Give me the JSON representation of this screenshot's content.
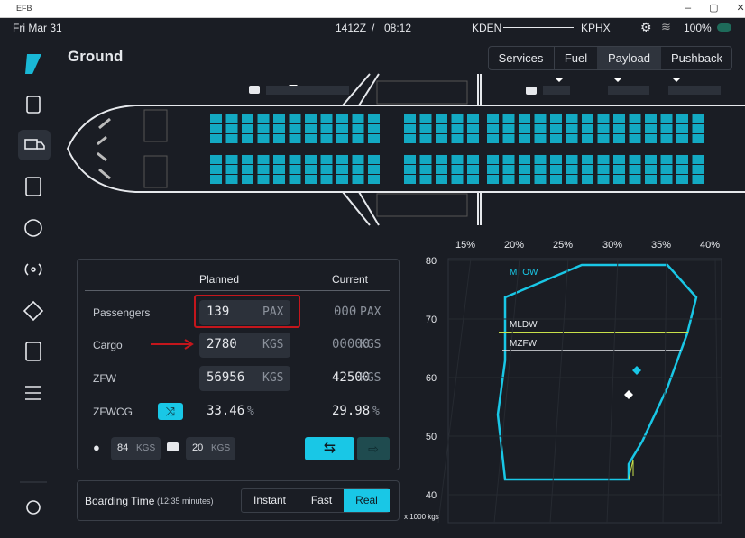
{
  "window": {
    "title": "EFB"
  },
  "status_bar": {
    "date": "Fri Mar 31",
    "time_utc": "1412Z",
    "separator": "/",
    "time_local": "08:12",
    "origin": "KDEN",
    "destination": "KPHX",
    "battery": "100%"
  },
  "header": {
    "title": "Ground",
    "tabs": [
      "Services",
      "Fuel",
      "Payload",
      "Pushback"
    ]
  },
  "payload_table": {
    "headers": [
      "Planned",
      "Current"
    ],
    "rows": [
      {
        "label": "Passengers",
        "planned": "139",
        "planned_unit": "PAX",
        "current": "000",
        "current_unit": "PAX"
      },
      {
        "label": "Cargo",
        "planned": "2780",
        "planned_unit": "KGS",
        "current": "00000",
        "current_unit": "KGS"
      },
      {
        "label": "ZFW",
        "planned": "56956",
        "planned_unit": "KGS",
        "current": "42500",
        "current_unit": "KGS"
      },
      {
        "label": "ZFWCG",
        "planned": "33.46",
        "planned_unit": "%",
        "current": "29.98",
        "current_unit": "%"
      }
    ],
    "pax_weight": "84",
    "pax_weight_unit": "KGS",
    "bag_weight": "20",
    "bag_weight_unit": "KGS"
  },
  "boarding": {
    "label": "Boarding Time",
    "duration": "(12:35 minutes)",
    "options": [
      "Instant",
      "Fast",
      "Real"
    ]
  },
  "cg_envelope": {
    "top_ticks": [
      "15%",
      "20%",
      "25%",
      "30%",
      "35%",
      "40%"
    ],
    "y_ticks": [
      "80",
      "70",
      "60",
      "50",
      "40"
    ],
    "unit": "x 1000 kgs",
    "limits": [
      "MTOW",
      "MLDW",
      "MZFW"
    ]
  }
}
